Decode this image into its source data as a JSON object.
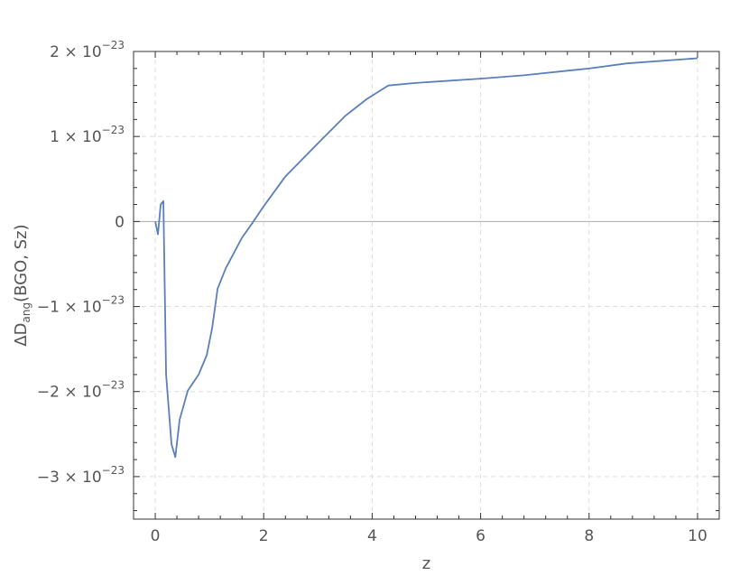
{
  "chart_data": {
    "type": "line",
    "title": "",
    "xlabel": "z",
    "ylabel": "ΔD",
    "ylabel_sub": "ang",
    "ylabel_rest": "(BGO, Sz)",
    "xlim": [
      -0.4,
      10.4
    ],
    "ylim": [
      -3.5e-23,
      2e-23
    ],
    "grid": true,
    "xticks": [
      {
        "value": 0,
        "label": "0"
      },
      {
        "value": 2,
        "label": "2"
      },
      {
        "value": 4,
        "label": "4"
      },
      {
        "value": 6,
        "label": "6"
      },
      {
        "value": 8,
        "label": "8"
      },
      {
        "value": 10,
        "label": "10"
      }
    ],
    "yticks": [
      {
        "value": 2e-23,
        "mantissa": "2.",
        "exp": "−23"
      },
      {
        "value": 1e-23,
        "mantissa": "1.",
        "exp": "−23"
      },
      {
        "value": 0,
        "mantissa": "0",
        "exp": ""
      },
      {
        "value": -1e-23,
        "mantissa": "−1.",
        "exp": "−23"
      },
      {
        "value": -2e-23,
        "mantissa": "−2.",
        "exp": "−23"
      },
      {
        "value": -3e-23,
        "mantissa": "−3.",
        "exp": "−23"
      }
    ],
    "series": [
      {
        "color": "#5b7fba",
        "x": [
          0.0,
          0.05,
          0.1,
          0.15,
          0.2,
          0.3,
          0.37,
          0.45,
          0.6,
          0.8,
          0.95,
          1.05,
          1.15,
          1.3,
          1.6,
          1.8,
          2.0,
          2.4,
          3.0,
          3.5,
          3.9,
          4.3,
          4.8,
          6.0,
          6.8,
          8.0,
          8.7,
          10.0
        ],
        "y": [
          0.0,
          -1.5e-24,
          2e-24,
          2.4e-24,
          -1.8e-23,
          -2.62e-23,
          -2.77e-23,
          -2.33e-23,
          -1.99e-23,
          -1.8e-23,
          -1.57e-23,
          -1.25e-23,
          -7.9e-24,
          -5.5e-24,
          -1.9e-24,
          -1e-25,
          1.8e-24,
          5.3e-24,
          9.2e-24,
          1.24e-23,
          1.44e-23,
          1.6e-23,
          1.63e-23,
          1.68e-23,
          1.72e-23,
          1.8e-23,
          1.86e-23,
          1.92e-23
        ]
      }
    ]
  }
}
